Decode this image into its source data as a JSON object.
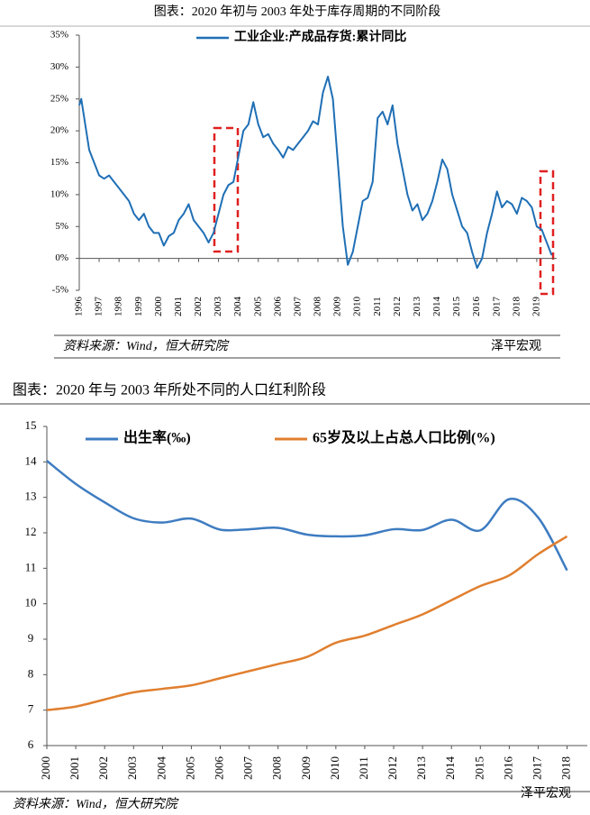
{
  "chart_data": [
    {
      "type": "line",
      "title": "图表：2020 年初与 2003 年处于库存周期的不同阶段",
      "series": [
        {
          "name": "工业企业:产成品存货:累计同比",
          "color": "#1f6fb5",
          "x": [
            1996.0,
            1996.1,
            1996.25,
            1996.5,
            1996.75,
            1997.0,
            1997.25,
            1997.5,
            1997.75,
            1998.0,
            1998.25,
            1998.5,
            1998.75,
            1999.0,
            1999.25,
            1999.5,
            1999.75,
            2000.0,
            2000.25,
            2000.5,
            2000.75,
            2001.0,
            2001.25,
            2001.5,
            2001.75,
            2002.0,
            2002.25,
            2002.5,
            2002.75,
            2003.0,
            2003.25,
            2003.5,
            2003.75,
            2004.0,
            2004.25,
            2004.5,
            2004.75,
            2005.0,
            2005.25,
            2005.5,
            2005.75,
            2006.0,
            2006.25,
            2006.5,
            2006.75,
            2007.0,
            2007.25,
            2007.5,
            2007.75,
            2008.0,
            2008.25,
            2008.5,
            2008.75,
            2009.0,
            2009.25,
            2009.5,
            2009.75,
            2010.0,
            2010.25,
            2010.5,
            2010.75,
            2011.0,
            2011.25,
            2011.5,
            2011.75,
            2012.0,
            2012.25,
            2012.5,
            2012.75,
            2013.0,
            2013.25,
            2013.5,
            2013.75,
            2014.0,
            2014.25,
            2014.5,
            2014.75,
            2015.0,
            2015.25,
            2015.5,
            2015.75,
            2016.0,
            2016.25,
            2016.5,
            2016.75,
            2017.0,
            2017.25,
            2017.5,
            2017.75,
            2018.0,
            2018.25,
            2018.5,
            2018.75,
            2019.0,
            2019.25,
            2019.5,
            2019.75
          ],
          "values": [
            24,
            25,
            22,
            17,
            15,
            13,
            12.5,
            13,
            12,
            11,
            10,
            9,
            7,
            6,
            7,
            5,
            4,
            4,
            2,
            3.5,
            4,
            6,
            7,
            8.5,
            6,
            5,
            4,
            2.5,
            4,
            7,
            10,
            11.5,
            12,
            16,
            20,
            21,
            24.5,
            21,
            19,
            19.5,
            18,
            17,
            15.8,
            17.5,
            17,
            18,
            19,
            20,
            21.5,
            21,
            26,
            28.5,
            25,
            15,
            5,
            -1,
            1,
            5,
            9,
            9.5,
            12,
            22,
            23,
            21,
            24,
            18,
            14,
            10,
            7.5,
            8.5,
            6,
            7,
            9,
            12,
            15.5,
            14,
            10,
            7.5,
            5,
            4,
            1,
            -1.5,
            0,
            4,
            7,
            10.5,
            8,
            9,
            8.5,
            7,
            9.5,
            9,
            8,
            5,
            4.5,
            2.5,
            0.5
          ]
        }
      ],
      "xlim": [
        1996,
        2020
      ],
      "xticks": [
        1996,
        1997,
        1998,
        1999,
        2000,
        2001,
        2002,
        2003,
        2004,
        2005,
        2006,
        2007,
        2008,
        2009,
        2010,
        2011,
        2012,
        2013,
        2014,
        2015,
        2016,
        2017,
        2018,
        2019
      ],
      "ylim": [
        -5,
        35
      ],
      "yticks": [
        {
          "value": -5,
          "label": "-5%"
        },
        {
          "value": 0,
          "label": "0%"
        },
        {
          "value": 5,
          "label": "5%"
        },
        {
          "value": 10,
          "label": "10%"
        },
        {
          "value": 15,
          "label": "15%"
        },
        {
          "value": 20,
          "label": "20%"
        },
        {
          "value": 25,
          "label": "25%"
        },
        {
          "value": 30,
          "label": "30%"
        },
        {
          "value": 35,
          "label": "35%"
        }
      ],
      "source": "资料来源：Wind，恒大研究院",
      "watermark": "泽平宏观"
    },
    {
      "type": "line",
      "title": "图表：2020 年与 2003 年所处不同的人口红利阶段",
      "series": [
        {
          "name": "出生率(‰)",
          "color": "#3e7cc1",
          "x": [
            2000,
            2001,
            2002,
            2003,
            2004,
            2005,
            2006,
            2007,
            2008,
            2009,
            2010,
            2011,
            2012,
            2013,
            2014,
            2015,
            2016,
            2017,
            2018
          ],
          "values": [
            14.03,
            13.38,
            12.86,
            12.41,
            12.29,
            12.4,
            12.09,
            12.1,
            12.14,
            11.95,
            11.9,
            11.93,
            12.1,
            12.08,
            12.37,
            12.07,
            12.95,
            12.43,
            10.94
          ]
        },
        {
          "name": "65岁及以上占总人口比例(%)",
          "color": "#e07f2f",
          "x": [
            2000,
            2001,
            2002,
            2003,
            2004,
            2005,
            2006,
            2007,
            2008,
            2009,
            2010,
            2011,
            2012,
            2013,
            2014,
            2015,
            2016,
            2017,
            2018
          ],
          "values": [
            7.0,
            7.1,
            7.3,
            7.5,
            7.6,
            7.7,
            7.9,
            8.1,
            8.3,
            8.5,
            8.9,
            9.1,
            9.4,
            9.7,
            10.1,
            10.5,
            10.8,
            11.4,
            11.9
          ]
        }
      ],
      "xlim": [
        2000,
        2018.7
      ],
      "xticks": [
        2000,
        2001,
        2002,
        2003,
        2004,
        2005,
        2006,
        2007,
        2008,
        2009,
        2010,
        2011,
        2012,
        2013,
        2014,
        2015,
        2016,
        2017,
        2018
      ],
      "ylim": [
        6,
        15
      ],
      "yticks": [
        6,
        7,
        8,
        9,
        10,
        11,
        12,
        13,
        14,
        15
      ],
      "source": "资料来源：Wind，恒大研究院",
      "watermark": "泽平宏观"
    }
  ]
}
